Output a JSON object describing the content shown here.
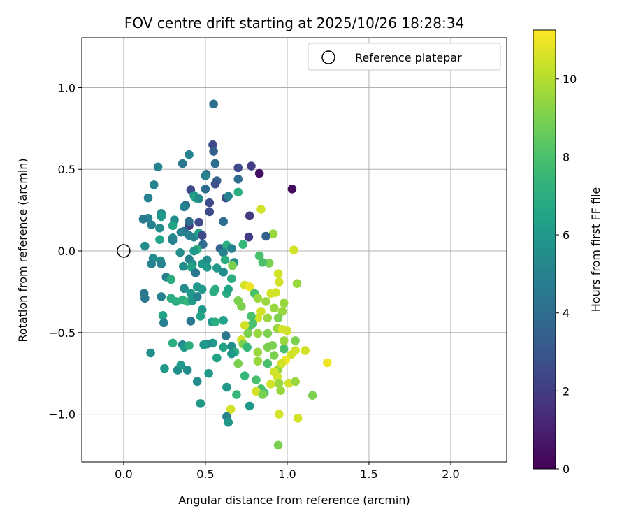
{
  "chart_data": {
    "type": "scatter",
    "title": "FOV centre drift starting at 2025/10/26 18:28:34",
    "xlabel": "Angular distance from reference (arcmin)",
    "ylabel": "Rotation from reference (arcmin)",
    "xlim": [
      -0.256,
      2.342
    ],
    "ylim": [
      -1.293,
      1.306
    ],
    "xticks": [
      0.0,
      0.5,
      1.0,
      1.5,
      2.0
    ],
    "xtick_labels": [
      "0.0",
      "0.5",
      "1.0",
      "1.5",
      "2.0"
    ],
    "yticks": [
      -1.0,
      -0.5,
      0.0,
      0.5,
      1.0
    ],
    "ytick_labels": [
      "−1.0",
      "−0.5",
      "0.0",
      "0.5",
      "1.0"
    ],
    "grid": true,
    "legend": {
      "placement": "top-right",
      "entries": [
        "Reference platepar"
      ]
    },
    "reference_point": [
      0,
      0
    ],
    "colorbar": {
      "label": "Hours from first FF file",
      "range": [
        0,
        11.25
      ],
      "ticks": [
        0,
        2,
        4,
        6,
        8,
        10
      ],
      "tick_labels": [
        "0",
        "2",
        "4",
        "6",
        "8",
        "10"
      ],
      "colormap": "viridis"
    },
    "points_format": [
      "x",
      "y",
      "hours"
    ],
    "points": [
      [
        0.55,
        0.9,
        4
      ],
      [
        0.545,
        0.65,
        2.5
      ],
      [
        0.55,
        0.61,
        3.5
      ],
      [
        0.83,
        0.475,
        0.5
      ],
      [
        1.03,
        0.38,
        0.3
      ],
      [
        0.78,
        0.52,
        2
      ],
      [
        0.7,
        0.51,
        2.5
      ],
      [
        0.56,
        0.535,
        4
      ],
      [
        0.21,
        0.515,
        5
      ],
      [
        0.4,
        0.59,
        5
      ],
      [
        0.36,
        0.535,
        4.5
      ],
      [
        0.185,
        0.405,
        5
      ],
      [
        0.505,
        0.47,
        4
      ],
      [
        0.5,
        0.46,
        5
      ],
      [
        0.57,
        0.43,
        3.5
      ],
      [
        0.56,
        0.41,
        2.8
      ],
      [
        0.7,
        0.44,
        4
      ],
      [
        0.7,
        0.36,
        7
      ],
      [
        0.41,
        0.375,
        2.5
      ],
      [
        0.43,
        0.34,
        6
      ],
      [
        0.44,
        0.325,
        6.5
      ],
      [
        0.46,
        0.32,
        5.5
      ],
      [
        0.5,
        0.38,
        4
      ],
      [
        0.525,
        0.295,
        2.5
      ],
      [
        0.625,
        0.325,
        2.8
      ],
      [
        0.64,
        0.335,
        5
      ],
      [
        0.38,
        0.28,
        4
      ],
      [
        0.37,
        0.27,
        5
      ],
      [
        0.15,
        0.325,
        5
      ],
      [
        0.23,
        0.23,
        5.5
      ],
      [
        0.23,
        0.21,
        6
      ],
      [
        0.525,
        0.24,
        2.5
      ],
      [
        0.15,
        0.2,
        5
      ],
      [
        0.12,
        0.195,
        4.5
      ],
      [
        0.17,
        0.16,
        5
      ],
      [
        0.22,
        0.14,
        5.5
      ],
      [
        0.31,
        0.19,
        5.5
      ],
      [
        0.3,
        0.155,
        6.5
      ],
      [
        0.4,
        0.155,
        2
      ],
      [
        0.4,
        0.18,
        4
      ],
      [
        0.46,
        0.175,
        2.5
      ],
      [
        0.61,
        0.18,
        4
      ],
      [
        0.77,
        0.215,
        2
      ],
      [
        0.84,
        0.255,
        10.5
      ],
      [
        0.915,
        0.105,
        9.5
      ],
      [
        0.87,
        0.09,
        3.5
      ],
      [
        0.765,
        0.085,
        2
      ],
      [
        0.37,
        0.12,
        4
      ],
      [
        0.35,
        0.115,
        5
      ],
      [
        0.3,
        0.08,
        5.5
      ],
      [
        0.3,
        0.065,
        5
      ],
      [
        0.22,
        0.07,
        6.5
      ],
      [
        0.13,
        0.03,
        5.5
      ],
      [
        0.4,
        0.095,
        5
      ],
      [
        0.43,
        0.085,
        5
      ],
      [
        0.46,
        0.11,
        6.5
      ],
      [
        0.48,
        0.095,
        2.5
      ],
      [
        0.485,
        0.04,
        4
      ],
      [
        0.45,
        0.01,
        7
      ],
      [
        0.43,
        0.0,
        6
      ],
      [
        0.345,
        -0.01,
        5.5
      ],
      [
        0.59,
        0.015,
        3.5
      ],
      [
        0.63,
        0.035,
        7
      ],
      [
        0.66,
        0.015,
        5
      ],
      [
        0.73,
        0.04,
        7.5
      ],
      [
        0.61,
        -0.01,
        5
      ],
      [
        0.675,
        -0.07,
        5.5
      ],
      [
        0.665,
        -0.09,
        9
      ],
      [
        0.83,
        -0.03,
        8
      ],
      [
        0.89,
        -0.075,
        9
      ],
      [
        0.85,
        -0.07,
        8
      ],
      [
        1.04,
        0.005,
        10.5
      ],
      [
        0.945,
        -0.14,
        10.5
      ],
      [
        0.95,
        -0.19,
        10.5
      ],
      [
        1.06,
        -0.2,
        9.5
      ],
      [
        0.18,
        -0.045,
        5.5
      ],
      [
        0.225,
        -0.06,
        5.5
      ],
      [
        0.17,
        -0.08,
        5
      ],
      [
        0.23,
        -0.08,
        5
      ],
      [
        0.4,
        -0.05,
        5
      ],
      [
        0.42,
        -0.08,
        5.5
      ],
      [
        0.365,
        -0.095,
        5.5
      ],
      [
        0.415,
        -0.1,
        6.5
      ],
      [
        0.44,
        -0.135,
        4.5
      ],
      [
        0.48,
        -0.08,
        6
      ],
      [
        0.51,
        -0.055,
        5.5
      ],
      [
        0.51,
        -0.1,
        6
      ],
      [
        0.57,
        -0.105,
        6
      ],
      [
        0.61,
        -0.13,
        5.5
      ],
      [
        0.62,
        -0.055,
        7
      ],
      [
        0.26,
        -0.16,
        5
      ],
      [
        0.29,
        -0.175,
        7
      ],
      [
        0.37,
        -0.23,
        5.5
      ],
      [
        0.45,
        -0.22,
        6
      ],
      [
        0.48,
        -0.235,
        6
      ],
      [
        0.56,
        -0.235,
        7
      ],
      [
        0.55,
        -0.25,
        7
      ],
      [
        0.63,
        -0.26,
        7
      ],
      [
        0.64,
        -0.235,
        6.5
      ],
      [
        0.66,
        -0.17,
        7
      ],
      [
        0.74,
        -0.21,
        10.5
      ],
      [
        0.77,
        -0.22,
        11
      ],
      [
        0.8,
        -0.26,
        8
      ],
      [
        0.82,
        -0.29,
        9.5
      ],
      [
        0.9,
        -0.26,
        10.5
      ],
      [
        0.93,
        -0.255,
        10.5
      ],
      [
        0.87,
        -0.31,
        9.5
      ],
      [
        0.92,
        -0.35,
        9.5
      ],
      [
        0.98,
        -0.32,
        9.5
      ],
      [
        0.97,
        -0.37,
        9.5
      ],
      [
        0.84,
        -0.37,
        10.5
      ],
      [
        0.88,
        -0.41,
        9.5
      ],
      [
        0.82,
        -0.41,
        10.5
      ],
      [
        0.78,
        -0.4,
        8
      ],
      [
        0.79,
        -0.445,
        8
      ],
      [
        0.77,
        -0.46,
        8
      ],
      [
        0.945,
        -0.41,
        9
      ],
      [
        0.72,
        -0.34,
        9
      ],
      [
        0.7,
        -0.305,
        9
      ],
      [
        0.23,
        -0.28,
        5
      ],
      [
        0.29,
        -0.29,
        7
      ],
      [
        0.32,
        -0.31,
        7
      ],
      [
        0.36,
        -0.3,
        7
      ],
      [
        0.39,
        -0.31,
        7.5
      ],
      [
        0.42,
        -0.305,
        6
      ],
      [
        0.41,
        -0.26,
        6
      ],
      [
        0.45,
        -0.28,
        5
      ],
      [
        0.48,
        -0.36,
        6
      ],
      [
        0.47,
        -0.4,
        6.5
      ],
      [
        0.24,
        -0.395,
        6.5
      ],
      [
        0.245,
        -0.44,
        5
      ],
      [
        0.41,
        -0.43,
        4.5
      ],
      [
        0.54,
        -0.435,
        6
      ],
      [
        0.56,
        -0.435,
        7
      ],
      [
        0.61,
        -0.425,
        6.5
      ],
      [
        0.74,
        -0.455,
        10.5
      ],
      [
        0.76,
        -0.505,
        9
      ],
      [
        0.82,
        -0.505,
        9.5
      ],
      [
        0.88,
        -0.505,
        9
      ],
      [
        0.94,
        -0.475,
        9.5
      ],
      [
        0.97,
        -0.48,
        10.5
      ],
      [
        1.0,
        -0.49,
        10.5
      ],
      [
        0.625,
        -0.52,
        4.5
      ],
      [
        0.72,
        -0.545,
        10.5
      ],
      [
        0.73,
        -0.57,
        9
      ],
      [
        0.66,
        -0.585,
        5.5
      ],
      [
        0.61,
        -0.59,
        6.5
      ],
      [
        0.545,
        -0.565,
        6
      ],
      [
        0.51,
        -0.57,
        5.5
      ],
      [
        0.49,
        -0.575,
        6
      ],
      [
        0.57,
        -0.655,
        6.5
      ],
      [
        0.68,
        -0.62,
        7
      ],
      [
        0.66,
        -0.63,
        6
      ],
      [
        0.7,
        -0.69,
        9
      ],
      [
        0.755,
        -0.59,
        7.5
      ],
      [
        0.82,
        -0.62,
        9.5
      ],
      [
        0.82,
        -0.675,
        9.5
      ],
      [
        0.88,
        -0.59,
        9
      ],
      [
        0.91,
        -0.58,
        9
      ],
      [
        0.92,
        -0.64,
        9
      ],
      [
        0.98,
        -0.55,
        9.5
      ],
      [
        0.98,
        -0.6,
        8
      ],
      [
        1.05,
        -0.55,
        9
      ],
      [
        1.05,
        -0.61,
        10.5
      ],
      [
        1.025,
        -0.635,
        10.5
      ],
      [
        0.99,
        -0.67,
        11
      ],
      [
        1.11,
        -0.61,
        10.5
      ],
      [
        1.245,
        -0.685,
        11
      ],
      [
        0.88,
        -0.69,
        8
      ],
      [
        0.945,
        -0.725,
        9.5
      ],
      [
        0.965,
        -0.69,
        10.5
      ],
      [
        0.92,
        -0.74,
        10.5
      ],
      [
        0.94,
        -0.77,
        10.5
      ],
      [
        0.95,
        -0.81,
        9.5
      ],
      [
        1.01,
        -0.81,
        10.5
      ],
      [
        1.05,
        -0.8,
        9.5
      ],
      [
        0.96,
        -0.855,
        9.5
      ],
      [
        0.9,
        -0.815,
        10.5
      ],
      [
        0.81,
        -0.79,
        8
      ],
      [
        0.74,
        -0.765,
        7.5
      ],
      [
        0.84,
        -0.845,
        8
      ],
      [
        0.86,
        -0.87,
        8
      ],
      [
        0.81,
        -0.86,
        10.5
      ],
      [
        0.85,
        -0.88,
        9
      ],
      [
        1.155,
        -0.885,
        9
      ],
      [
        0.63,
        -0.835,
        6
      ],
      [
        0.69,
        -0.88,
        7.5
      ],
      [
        0.77,
        -0.95,
        6
      ],
      [
        0.655,
        -0.97,
        10.5
      ],
      [
        0.63,
        -1.015,
        5
      ],
      [
        0.64,
        -1.05,
        6
      ],
      [
        0.95,
        -1.0,
        10.5
      ],
      [
        1.065,
        -1.025,
        10.5
      ],
      [
        0.945,
        -1.19,
        9
      ],
      [
        0.165,
        -0.625,
        5.5
      ],
      [
        0.25,
        -0.72,
        6
      ],
      [
        0.3,
        -0.565,
        7
      ],
      [
        0.33,
        -0.73,
        5.5
      ],
      [
        0.36,
        -0.575,
        5
      ],
      [
        0.37,
        -0.59,
        6
      ],
      [
        0.39,
        -0.73,
        5.5
      ],
      [
        0.4,
        -0.58,
        7
      ],
      [
        0.35,
        -0.7,
        6
      ],
      [
        0.45,
        -0.8,
        5.5
      ],
      [
        0.47,
        -0.935,
        6
      ],
      [
        0.52,
        -0.75,
        6
      ],
      [
        0.125,
        -0.26,
        4.5
      ],
      [
        0.13,
        -0.29,
        4.5
      ]
    ]
  }
}
